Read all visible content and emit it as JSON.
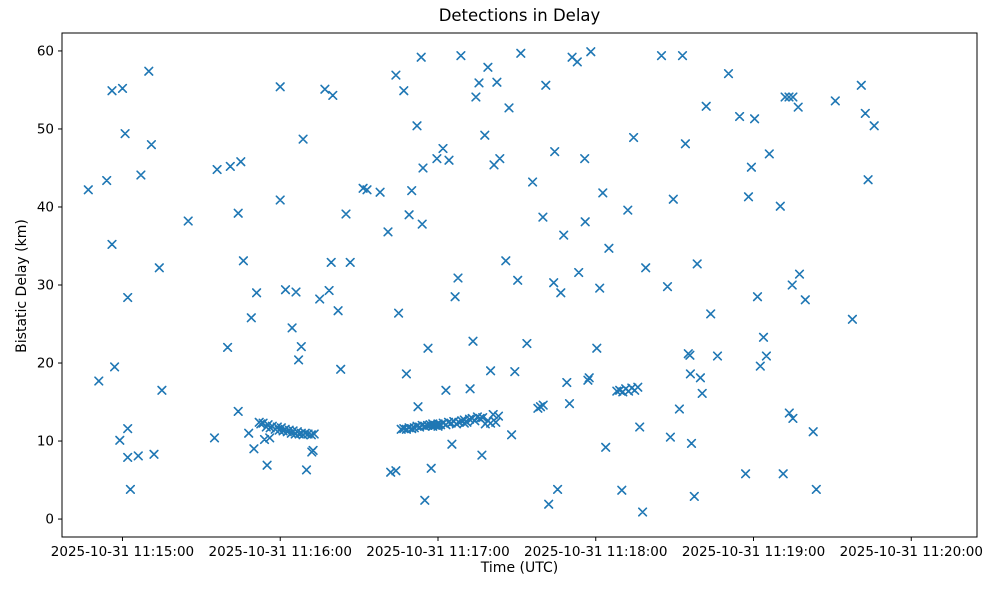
{
  "chart_data": {
    "type": "scatter",
    "title": "Detections in Delay",
    "xlabel": "Time (UTC)",
    "ylabel": "Bistatic Delay (km)",
    "marker": "x",
    "marker_color": "#1f77b4",
    "grid": false,
    "legend": "none",
    "x_unit": "seconds after 2025-10-31 11:15:00 UTC",
    "x_range_seconds": [
      -23,
      325
    ],
    "y_range": [
      -2.3,
      62.3
    ],
    "x_ticks": [
      {
        "t": 0,
        "label": "2025-10-31 11:15:00"
      },
      {
        "t": 60,
        "label": "2025-10-31 11:16:00"
      },
      {
        "t": 120,
        "label": "2025-10-31 11:17:00"
      },
      {
        "t": 180,
        "label": "2025-10-31 11:18:00"
      },
      {
        "t": 240,
        "label": "2025-10-31 11:19:00"
      },
      {
        "t": 300,
        "label": "2025-10-31 11:20:00"
      }
    ],
    "y_ticks": [
      0,
      10,
      20,
      30,
      40,
      50,
      60
    ],
    "points": [
      [
        -13,
        42.2
      ],
      [
        -9,
        17.7
      ],
      [
        -6,
        43.4
      ],
      [
        -4,
        35.2
      ],
      [
        -4,
        54.9
      ],
      [
        -3,
        19.5
      ],
      [
        -1,
        10.1
      ],
      [
        0,
        55.2
      ],
      [
        1,
        49.4
      ],
      [
        2,
        11.6
      ],
      [
        2,
        28.4
      ],
      [
        2,
        7.9
      ],
      [
        3,
        3.8
      ],
      [
        6,
        8.1
      ],
      [
        7,
        44.1
      ],
      [
        10,
        57.4
      ],
      [
        11,
        48.0
      ],
      [
        12,
        8.3
      ],
      [
        14,
        32.2
      ],
      [
        15,
        16.5
      ],
      [
        25,
        38.2
      ],
      [
        35,
        10.4
      ],
      [
        36,
        44.8
      ],
      [
        40,
        22.0
      ],
      [
        41,
        45.2
      ],
      [
        44,
        13.8
      ],
      [
        44,
        39.2
      ],
      [
        45,
        45.8
      ],
      [
        46,
        33.1
      ],
      [
        48,
        11.0
      ],
      [
        49,
        25.8
      ],
      [
        50,
        9.0
      ],
      [
        51,
        29.0
      ],
      [
        52,
        12.4
      ],
      [
        52.6,
        12.2
      ],
      [
        53.5,
        12.3
      ],
      [
        54,
        10.2
      ],
      [
        54.7,
        11.8
      ],
      [
        55,
        6.9
      ],
      [
        55.4,
        12.1
      ],
      [
        56,
        10.4
      ],
      [
        56.2,
        11.7
      ],
      [
        57,
        11.9
      ],
      [
        58.1,
        11.5
      ],
      [
        58.9,
        11.8
      ],
      [
        59.6,
        11.4
      ],
      [
        60.4,
        11.7
      ],
      [
        61.1,
        11.3
      ],
      [
        61.9,
        11.5
      ],
      [
        62.7,
        11.2
      ],
      [
        63.4,
        11.4
      ],
      [
        64.2,
        11.0
      ],
      [
        64.9,
        11.3
      ],
      [
        65.7,
        10.9
      ],
      [
        66.5,
        11.2
      ],
      [
        67.2,
        10.9
      ],
      [
        68,
        11.0
      ],
      [
        68.7,
        10.8
      ],
      [
        69.5,
        11.0
      ],
      [
        70.6,
        10.9
      ],
      [
        71.8,
        10.8
      ],
      [
        72.9,
        10.9
      ],
      [
        60,
        55.4
      ],
      [
        60,
        40.9
      ],
      [
        62,
        29.4
      ],
      [
        64.5,
        24.5
      ],
      [
        66,
        29.1
      ],
      [
        67,
        20.4
      ],
      [
        68,
        22.1
      ],
      [
        68.7,
        48.7
      ],
      [
        70,
        6.3
      ],
      [
        72,
        8.6
      ],
      [
        72.5,
        8.8
      ],
      [
        75,
        28.2
      ],
      [
        77,
        55.1
      ],
      [
        78.6,
        29.3
      ],
      [
        79.4,
        32.9
      ],
      [
        80,
        54.3
      ],
      [
        82,
        26.7
      ],
      [
        83,
        19.2
      ],
      [
        85,
        39.1
      ],
      [
        86.6,
        32.9
      ],
      [
        91.5,
        42.4
      ],
      [
        93,
        42.2
      ],
      [
        98,
        41.9
      ],
      [
        101,
        36.8
      ],
      [
        102,
        6.0
      ],
      [
        104,
        6.2
      ],
      [
        104,
        56.9
      ],
      [
        105,
        26.4
      ],
      [
        106,
        11.5
      ],
      [
        107,
        54.9
      ],
      [
        107,
        11.6
      ],
      [
        108,
        18.6
      ],
      [
        108,
        11.5
      ],
      [
        109,
        39.0
      ],
      [
        109,
        11.7
      ],
      [
        110,
        11.6
      ],
      [
        110,
        42.1
      ],
      [
        111,
        11.7
      ],
      [
        112,
        50.4
      ],
      [
        112,
        11.9
      ],
      [
        112.4,
        14.4
      ],
      [
        113,
        11.8
      ],
      [
        113.6,
        59.2
      ],
      [
        114,
        12.0
      ],
      [
        114,
        37.8
      ],
      [
        114.3,
        45.0
      ],
      [
        115,
        2.4
      ],
      [
        115,
        11.9
      ],
      [
        116,
        12.0
      ],
      [
        116.2,
        21.9
      ],
      [
        117,
        12.1
      ],
      [
        117.4,
        6.5
      ],
      [
        118,
        11.9
      ],
      [
        118,
        12.2
      ],
      [
        119,
        12.0
      ],
      [
        119.6,
        46.2
      ],
      [
        120,
        12.2
      ],
      [
        120,
        11.9
      ],
      [
        121,
        12.1
      ],
      [
        121.9,
        47.5
      ],
      [
        122,
        12.3
      ],
      [
        123,
        12.1
      ],
      [
        123,
        16.5
      ],
      [
        124,
        12.4
      ],
      [
        124.2,
        46.0
      ],
      [
        125,
        12.3
      ],
      [
        125.3,
        9.6
      ],
      [
        126,
        12.5
      ],
      [
        126.5,
        28.5
      ],
      [
        127,
        12.2
      ],
      [
        127.6,
        30.9
      ],
      [
        128,
        12.4
      ],
      [
        128.7,
        59.4
      ],
      [
        129,
        12.6
      ],
      [
        130,
        12.3
      ],
      [
        130,
        12.7
      ],
      [
        131,
        12.4
      ],
      [
        132,
        12.8
      ],
      [
        132.2,
        16.7
      ],
      [
        133,
        12.9
      ],
      [
        133.3,
        22.8
      ],
      [
        134,
        12.6
      ],
      [
        134.4,
        54.1
      ],
      [
        135,
        13.1
      ],
      [
        135.6,
        55.9
      ],
      [
        136,
        12.9
      ],
      [
        136.7,
        8.2
      ],
      [
        137,
        13.0
      ],
      [
        137.8,
        49.2
      ],
      [
        138,
        12.2
      ],
      [
        139,
        57.9
      ],
      [
        139,
        12.6
      ],
      [
        140,
        19.0
      ],
      [
        140,
        12.3
      ],
      [
        141,
        13.4
      ],
      [
        141.3,
        45.4
      ],
      [
        142,
        12.4
      ],
      [
        142.4,
        56.0
      ],
      [
        143,
        13.2
      ],
      [
        143.5,
        46.2
      ],
      [
        145.8,
        33.1
      ],
      [
        147,
        52.7
      ],
      [
        148,
        10.8
      ],
      [
        149.2,
        18.9
      ],
      [
        150.3,
        30.6
      ],
      [
        151.5,
        59.7
      ],
      [
        153.8,
        22.5
      ],
      [
        156,
        43.2
      ],
      [
        158,
        14.2
      ],
      [
        159,
        14.4
      ],
      [
        160,
        14.6
      ],
      [
        159.9,
        38.7
      ],
      [
        161,
        55.6
      ],
      [
        162.1,
        1.9
      ],
      [
        164,
        30.3
      ],
      [
        164.4,
        47.1
      ],
      [
        165.5,
        3.8
      ],
      [
        166.7,
        29.0
      ],
      [
        167.8,
        36.4
      ],
      [
        169,
        17.5
      ],
      [
        170,
        14.8
      ],
      [
        171,
        59.2
      ],
      [
        173,
        58.6
      ],
      [
        173.5,
        31.6
      ],
      [
        176,
        38.1
      ],
      [
        175.8,
        46.2
      ],
      [
        177,
        17.8
      ],
      [
        177.5,
        18.1
      ],
      [
        178.1,
        59.9
      ],
      [
        180.4,
        21.9
      ],
      [
        181.5,
        29.6
      ],
      [
        182.7,
        41.8
      ],
      [
        183.8,
        9.2
      ],
      [
        185,
        34.7
      ],
      [
        188,
        16.4
      ],
      [
        189.1,
        16.5
      ],
      [
        190.3,
        16.3
      ],
      [
        191.4,
        16.7
      ],
      [
        192.5,
        16.4
      ],
      [
        193.7,
        16.8
      ],
      [
        194.8,
        16.5
      ],
      [
        196,
        16.9
      ],
      [
        189.9,
        3.7
      ],
      [
        192.2,
        39.6
      ],
      [
        194.4,
        48.9
      ],
      [
        196.7,
        11.8
      ],
      [
        197.8,
        0.9
      ],
      [
        199,
        32.2
      ],
      [
        205,
        59.4
      ],
      [
        207.3,
        29.8
      ],
      [
        208.4,
        10.5
      ],
      [
        209.5,
        41.0
      ],
      [
        211.8,
        14.1
      ],
      [
        213,
        59.4
      ],
      [
        214.1,
        48.1
      ],
      [
        215.2,
        21.2
      ],
      [
        215.8,
        21.0
      ],
      [
        216,
        18.6
      ],
      [
        216.4,
        9.7
      ],
      [
        217.5,
        2.9
      ],
      [
        218.6,
        32.7
      ],
      [
        219.8,
        18.1
      ],
      [
        220.5,
        16.1
      ],
      [
        222,
        52.9
      ],
      [
        223.7,
        26.3
      ],
      [
        226.3,
        20.9
      ],
      [
        230.5,
        57.1
      ],
      [
        234.7,
        51.6
      ],
      [
        237,
        5.8
      ],
      [
        238.1,
        41.3
      ],
      [
        239.2,
        45.1
      ],
      [
        240.4,
        51.3
      ],
      [
        241.5,
        28.5
      ],
      [
        242.6,
        19.6
      ],
      [
        243.8,
        23.3
      ],
      [
        244.9,
        20.9
      ],
      [
        246,
        46.8
      ],
      [
        250.2,
        40.1
      ],
      [
        251.3,
        5.8
      ],
      [
        252,
        54.1
      ],
      [
        253.5,
        54.1
      ],
      [
        255,
        54.1
      ],
      [
        253.6,
        13.6
      ],
      [
        254.7,
        30.0
      ],
      [
        255,
        12.9
      ],
      [
        257,
        52.8
      ],
      [
        257.5,
        31.4
      ],
      [
        259.7,
        28.1
      ],
      [
        262.7,
        11.2
      ],
      [
        263.9,
        3.8
      ],
      [
        271.1,
        53.6
      ],
      [
        277.6,
        25.6
      ],
      [
        281,
        55.6
      ],
      [
        282.5,
        52.0
      ],
      [
        283.6,
        43.5
      ],
      [
        285.9,
        50.4
      ]
    ]
  }
}
